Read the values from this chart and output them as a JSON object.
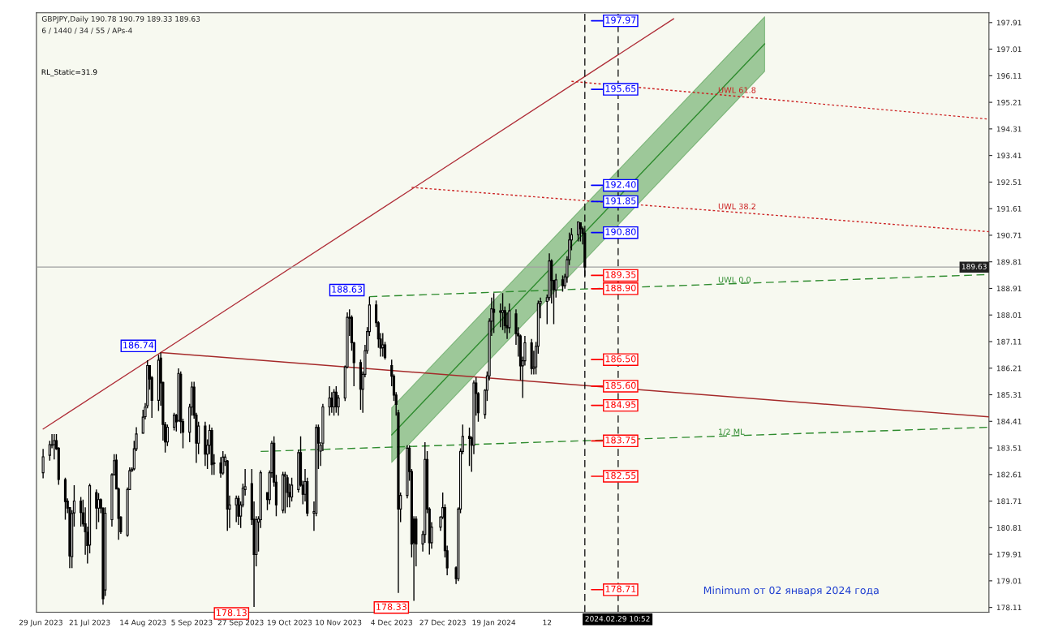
{
  "chart_data": {
    "type": "candlestick",
    "title": "GBPJPY,Daily 190.78 190.79 189.33 189.63",
    "subtitle": "6 / 1440 / 34 / 55 / APs-4",
    "x": [
      "2023-06-30",
      "2023-07-03",
      "2023-07-04",
      "2023-07-05",
      "2023-07-06",
      "2023-07-07",
      "2023-07-10",
      "2023-07-11",
      "2023-07-12",
      "2023-07-13",
      "2023-07-14",
      "2023-07-17",
      "2023-07-18",
      "2023-07-19",
      "2023-07-20",
      "2023-07-21",
      "2023-07-24",
      "2023-07-25",
      "2023-07-26",
      "2023-07-27",
      "2023-07-28",
      "2023-07-31",
      "2023-08-01",
      "2023-08-02",
      "2023-08-03",
      "2023-08-04",
      "2023-08-07",
      "2023-08-08",
      "2023-08-09",
      "2023-08-10",
      "2023-08-11",
      "2023-08-14",
      "2023-08-15",
      "2023-08-16",
      "2023-08-17",
      "2023-08-18",
      "2023-08-21",
      "2023-08-22",
      "2023-08-23",
      "2023-08-24",
      "2023-08-25",
      "2023-08-28",
      "2023-08-29",
      "2023-08-30",
      "2023-08-31",
      "2023-09-01",
      "2023-09-04",
      "2023-09-05",
      "2023-09-06",
      "2023-09-07",
      "2023-09-08",
      "2023-09-11",
      "2023-09-12",
      "2023-09-13",
      "2023-09-14",
      "2023-09-15",
      "2023-09-18",
      "2023-09-19",
      "2023-09-20",
      "2023-09-21",
      "2023-09-22",
      "2023-09-25",
      "2023-09-26",
      "2023-09-27",
      "2023-09-28",
      "2023-09-29",
      "2023-10-02",
      "2023-10-03",
      "2023-10-04",
      "2023-10-05",
      "2023-10-06",
      "2023-10-09",
      "2023-10-10",
      "2023-10-11",
      "2023-10-12",
      "2023-10-13",
      "2023-10-16",
      "2023-10-17",
      "2023-10-18",
      "2023-10-19",
      "2023-10-20",
      "2023-10-23",
      "2023-10-24",
      "2023-10-25",
      "2023-10-26",
      "2023-10-27",
      "2023-10-30",
      "2023-10-31",
      "2023-11-01",
      "2023-11-02",
      "2023-11-03",
      "2023-11-06",
      "2023-11-07",
      "2023-11-08",
      "2023-11-09",
      "2023-11-10",
      "2023-11-13",
      "2023-11-14",
      "2023-11-15",
      "2023-11-16",
      "2023-11-17",
      "2023-11-20",
      "2023-11-21",
      "2023-11-22",
      "2023-11-23",
      "2023-11-24",
      "2023-11-27",
      "2023-11-28",
      "2023-11-29",
      "2023-11-30",
      "2023-12-01",
      "2023-12-04",
      "2023-12-05",
      "2023-12-06",
      "2023-12-07",
      "2023-12-08",
      "2023-12-11",
      "2023-12-12",
      "2023-12-13",
      "2023-12-14",
      "2023-12-15",
      "2023-12-18",
      "2023-12-19",
      "2023-12-20",
      "2023-12-21",
      "2023-12-22",
      "2023-12-26",
      "2023-12-27",
      "2023-12-28",
      "2023-12-29",
      "2024-01-02",
      "2024-01-03",
      "2024-01-04",
      "2024-01-05",
      "2024-01-08",
      "2024-01-09",
      "2024-01-10",
      "2024-01-11",
      "2024-01-12",
      "2024-01-15",
      "2024-01-16",
      "2024-01-17",
      "2024-01-18",
      "2024-01-19",
      "2024-01-22",
      "2024-01-23",
      "2024-01-24",
      "2024-01-25",
      "2024-01-26",
      "2024-01-29",
      "2024-01-30",
      "2024-01-31",
      "2024-02-01",
      "2024-02-02",
      "2024-02-05",
      "2024-02-06",
      "2024-02-07",
      "2024-02-08",
      "2024-02-09",
      "2024-02-12",
      "2024-02-13",
      "2024-02-14",
      "2024-02-15",
      "2024-02-16",
      "2024-02-19",
      "2024-02-20",
      "2024-02-21",
      "2024-02-22",
      "2024-02-23",
      "2024-02-26",
      "2024-02-27",
      "2024-02-28",
      "2024-02-29"
    ],
    "ohlc": [
      [
        182.67,
        183.48,
        182.48,
        183.21
      ],
      [
        183.26,
        183.75,
        183.08,
        183.62
      ],
      [
        183.6,
        183.98,
        183.5,
        183.62
      ],
      [
        183.62,
        183.98,
        183.12,
        183.76
      ],
      [
        183.76,
        183.98,
        183.44,
        183.48
      ],
      [
        183.5,
        183.53,
        182.26,
        182.44
      ],
      [
        182.44,
        182.5,
        181.08,
        181.69
      ],
      [
        181.71,
        181.8,
        181.3,
        181.47
      ],
      [
        181.49,
        181.5,
        179.44,
        179.85
      ],
      [
        179.83,
        181.4,
        179.44,
        181.29
      ],
      [
        181.31,
        182.25,
        180.85,
        181.71
      ],
      [
        181.71,
        181.85,
        180.85,
        181.32
      ],
      [
        181.31,
        181.76,
        180.85,
        180.94
      ],
      [
        180.94,
        181.5,
        179.89,
        180.67
      ],
      [
        180.65,
        180.85,
        179.6,
        180.2
      ],
      [
        180.22,
        182.3,
        179.94,
        182.23
      ],
      [
        182.0,
        182.1,
        180.76,
        181.47
      ],
      [
        181.47,
        181.98,
        181.0,
        181.76
      ],
      [
        181.76,
        181.8,
        181.3,
        181.47
      ],
      [
        181.47,
        181.5,
        178.2,
        178.4
      ],
      [
        178.7,
        181.5,
        178.5,
        181.3
      ],
      [
        181.08,
        182.65,
        180.85,
        182.6
      ],
      [
        182.6,
        183.3,
        182.58,
        183.08
      ],
      [
        183.1,
        183.3,
        182.12,
        182.12
      ],
      [
        182.12,
        182.17,
        180.4,
        181.12
      ],
      [
        181.17,
        181.2,
        180.6,
        180.67
      ],
      [
        180.55,
        182.17,
        180.5,
        182.1
      ],
      [
        182.1,
        182.85,
        182.08,
        182.74
      ],
      [
        182.74,
        182.85,
        182.7,
        182.79
      ],
      [
        182.8,
        183.75,
        182.75,
        183.48
      ],
      [
        183.48,
        184.21,
        183.4,
        183.98
      ],
      [
        184.01,
        184.8,
        184.0,
        184.55
      ],
      [
        184.57,
        185.03,
        184.48,
        184.89
      ],
      [
        184.94,
        186.48,
        184.85,
        186.3
      ],
      [
        186.3,
        186.3,
        185.48,
        185.84
      ],
      [
        185.89,
        185.94,
        184.53,
        185.12
      ],
      [
        185.12,
        186.66,
        184.76,
        186.48
      ],
      [
        186.55,
        186.74,
        184.94,
        185.71
      ],
      [
        185.73,
        185.75,
        183.76,
        184.3
      ],
      [
        184.3,
        184.39,
        183.35,
        183.71
      ],
      [
        183.71,
        184.3,
        183.57,
        184.21
      ],
      [
        184.21,
        184.7,
        184.1,
        184.62
      ],
      [
        184.62,
        184.66,
        184.07,
        184.39
      ],
      [
        184.44,
        186.2,
        184.4,
        186.03
      ],
      [
        186.0,
        186.1,
        184.0,
        184.4
      ],
      [
        184.4,
        184.5,
        183.5,
        184.04
      ],
      [
        184.04,
        185.0,
        183.7,
        184.89
      ],
      [
        184.89,
        185.75,
        184.6,
        185.57
      ],
      [
        185.57,
        185.75,
        184.5,
        184.62
      ],
      [
        184.62,
        184.7,
        183.0,
        183.67
      ],
      [
        183.67,
        184.4,
        183.3,
        184.25
      ],
      [
        184.25,
        184.4,
        182.9,
        183.3
      ],
      [
        183.3,
        183.8,
        182.8,
        183.6
      ],
      [
        183.6,
        184.3,
        183.3,
        184.1
      ],
      [
        184.1,
        184.2,
        182.6,
        182.94
      ],
      [
        182.98,
        183.3,
        182.6,
        183.0
      ],
      [
        183.0,
        183.2,
        182.5,
        182.66
      ],
      [
        182.66,
        183.4,
        182.6,
        183.2
      ],
      [
        183.05,
        183.3,
        182.9,
        183.2
      ],
      [
        183.07,
        183.1,
        180.7,
        181.44
      ],
      [
        181.44,
        181.9,
        180.8,
        181.58
      ],
      [
        181.58,
        181.9,
        181.0,
        181.8
      ],
      [
        181.8,
        181.9,
        180.9,
        181.2
      ],
      [
        181.2,
        181.7,
        180.8,
        181.58
      ],
      [
        181.58,
        182.3,
        181.5,
        182.15
      ],
      [
        182.1,
        182.8,
        181.9,
        182.2
      ],
      [
        182.3,
        182.8,
        180.9,
        181.08
      ],
      [
        181.1,
        181.7,
        178.13,
        179.9
      ],
      [
        179.9,
        181.2,
        179.5,
        181.08
      ],
      [
        181.0,
        181.2,
        180.0,
        181.1
      ],
      [
        181.08,
        182.75,
        180.8,
        182.67
      ],
      [
        182.0,
        182.0,
        181.4,
        181.76
      ],
      [
        181.76,
        182.75,
        181.6,
        182.67
      ],
      [
        182.67,
        183.75,
        182.5,
        183.67
      ],
      [
        183.67,
        183.9,
        182.2,
        182.35
      ],
      [
        182.35,
        182.6,
        181.2,
        181.58
      ],
      [
        181.4,
        182.7,
        181.3,
        182.6
      ],
      [
        182.55,
        182.7,
        181.3,
        182.6
      ],
      [
        182.5,
        182.6,
        181.5,
        182.0
      ],
      [
        182.0,
        182.3,
        181.5,
        181.85
      ],
      [
        181.85,
        182.5,
        181.7,
        182.25
      ],
      [
        182.1,
        183.45,
        182.0,
        183.35
      ],
      [
        183.35,
        183.9,
        182.2,
        182.25
      ],
      [
        182.25,
        182.4,
        181.6,
        181.94
      ],
      [
        181.94,
        182.8,
        181.7,
        182.37
      ],
      [
        182.37,
        182.5,
        181.2,
        181.3
      ],
      [
        181.3,
        181.7,
        180.7,
        181.35
      ],
      [
        181.3,
        184.3,
        181.2,
        184.2
      ],
      [
        184.2,
        184.3,
        182.8,
        183.67
      ],
      [
        183.4,
        183.7,
        182.9,
        183.6
      ],
      [
        183.67,
        185.0,
        183.4,
        184.9
      ],
      [
        184.9,
        185.6,
        184.6,
        185.2
      ],
      [
        185.2,
        185.4,
        184.7,
        184.9
      ],
      [
        184.9,
        185.5,
        184.6,
        185.4
      ],
      [
        185.4,
        185.6,
        184.7,
        184.9
      ],
      [
        184.9,
        185.3,
        184.6,
        185.2
      ],
      [
        185.2,
        186.3,
        185.1,
        186.25
      ],
      [
        186.25,
        188.1,
        186.2,
        187.93
      ],
      [
        187.9,
        188.2,
        187.3,
        187.93
      ],
      [
        187.93,
        188.0,
        186.8,
        187.07
      ],
      [
        187.07,
        187.1,
        185.6,
        186.4
      ],
      [
        186.4,
        186.5,
        184.8,
        185.5
      ],
      [
        185.5,
        186.1,
        184.7,
        186.0
      ],
      [
        186.0,
        187.0,
        185.9,
        186.8
      ],
      [
        186.8,
        187.6,
        186.7,
        187.45
      ],
      [
        187.45,
        188.63,
        187.3,
        188.35
      ],
      [
        188.35,
        188.5,
        187.6,
        187.75
      ],
      [
        187.75,
        187.8,
        186.9,
        187.2
      ],
      [
        187.2,
        187.4,
        186.6,
        186.89
      ],
      [
        186.9,
        187.4,
        186.6,
        187.0
      ],
      [
        187.0,
        187.1,
        186.5,
        186.57
      ],
      [
        186.3,
        186.5,
        185.6,
        185.94
      ],
      [
        185.94,
        186.0,
        185.1,
        185.3
      ],
      [
        185.3,
        185.4,
        184.6,
        184.98
      ],
      [
        184.7,
        184.8,
        178.6,
        181.44
      ],
      [
        181.44,
        182.0,
        181.0,
        181.9
      ],
      [
        181.9,
        183.6,
        181.8,
        183.5
      ],
      [
        183.5,
        183.6,
        182.4,
        182.71
      ],
      [
        182.71,
        182.8,
        179.8,
        180.26
      ],
      [
        181.1,
        181.2,
        178.33,
        180.3
      ],
      [
        181.1,
        181.2,
        179.5,
        180.26
      ],
      [
        180.26,
        180.7,
        180.0,
        180.58
      ],
      [
        180.58,
        183.7,
        180.3,
        183.12
      ],
      [
        183.12,
        183.4,
        181.3,
        181.44
      ],
      [
        181.44,
        181.5,
        179.9,
        180.3
      ],
      [
        180.3,
        181.0,
        180.1,
        180.83
      ],
      [
        180.83,
        181.2,
        180.7,
        181.17
      ],
      [
        181.17,
        182.0,
        181.1,
        181.49
      ],
      [
        181.49,
        181.6,
        179.8,
        180.03
      ],
      [
        180.03,
        180.2,
        179.2,
        179.45
      ],
      [
        179.45,
        179.5,
        178.9,
        179.08
      ],
      [
        179.08,
        181.5,
        179.0,
        181.44
      ],
      [
        181.44,
        183.5,
        181.3,
        183.39
      ],
      [
        183.39,
        184.3,
        183.3,
        183.9
      ],
      [
        183.9,
        184.2,
        182.9,
        183.83
      ],
      [
        183.85,
        183.9,
        182.7,
        183.6
      ],
      [
        183.6,
        185.8,
        183.3,
        185.71
      ],
      [
        185.71,
        185.9,
        184.6,
        185.35
      ],
      [
        185.35,
        185.4,
        184.4,
        184.7
      ],
      [
        184.64,
        185.5,
        184.5,
        185.46
      ],
      [
        185.46,
        186.1,
        185.1,
        185.95
      ],
      [
        185.95,
        187.9,
        185.8,
        187.8
      ],
      [
        187.8,
        188.6,
        187.3,
        188.22
      ],
      [
        188.2,
        188.75,
        187.4,
        188.1
      ],
      [
        188.15,
        188.4,
        187.6,
        188.1
      ],
      [
        188.1,
        188.75,
        187.5,
        188.16
      ],
      [
        188.16,
        188.3,
        187.4,
        187.65
      ],
      [
        187.65,
        188.1,
        187.2,
        187.58
      ],
      [
        187.58,
        188.4,
        187.4,
        188.15
      ],
      [
        188.05,
        188.2,
        187.0,
        187.38
      ],
      [
        187.38,
        187.6,
        186.6,
        187.3
      ],
      [
        187.3,
        187.35,
        185.8,
        186.29
      ],
      [
        186.29,
        186.6,
        185.2,
        186.46
      ],
      [
        186.46,
        187.3,
        186.3,
        187.07
      ],
      [
        187.07,
        187.2,
        186.0,
        186.2
      ],
      [
        186.2,
        186.8,
        186.0,
        186.25
      ],
      [
        186.25,
        187.1,
        186.0,
        186.95
      ],
      [
        186.95,
        188.5,
        186.7,
        188.4
      ],
      [
        188.4,
        188.6,
        187.9,
        188.47
      ],
      [
        188.47,
        188.7,
        187.7,
        188.6
      ],
      [
        188.6,
        190.1,
        188.5,
        189.84
      ],
      [
        189.84,
        189.9,
        188.4,
        189.18
      ],
      [
        189.18,
        189.2,
        187.7,
        188.86
      ],
      [
        188.86,
        189.4,
        188.6,
        189.2
      ],
      [
        189.2,
        189.35,
        188.8,
        189.0
      ],
      [
        189.0,
        189.4,
        188.9,
        189.3
      ],
      [
        189.3,
        190.0,
        189.1,
        189.88
      ],
      [
        189.88,
        190.8,
        189.7,
        190.55
      ],
      [
        190.55,
        190.95,
        190.2,
        190.73
      ],
      [
        190.73,
        191.16,
        190.5,
        191.16
      ],
      [
        191.13,
        191.14,
        190.5,
        190.93
      ],
      [
        190.93,
        191.0,
        190.4,
        190.78
      ],
      [
        190.78,
        190.79,
        189.33,
        189.63
      ]
    ],
    "series": [
      {
        "type": "line",
        "color": "#b0303a",
        "line_style": "solid",
        "x": [
          "2023-06-30",
          "2024-04-09"
        ],
        "values": [
          184.15,
          198.04
        ]
      },
      {
        "type": "line",
        "color": "#a52a2a",
        "line_style": "solid",
        "x": [
          "2023-08-22",
          "2024-08-29"
        ],
        "values": [
          186.74,
          184.56
        ]
      },
      {
        "type": "line",
        "color": "#2e8b2e",
        "line_style": "solid",
        "x": [
          "2023-12-04",
          "2024-05-20"
        ],
        "values": [
          183.95,
          197.19
        ],
        "lower": [
          183.02,
          196.26
        ],
        "upper": [
          184.87,
          198.11
        ]
      },
      {
        "type": "line",
        "name": "UWL 0.0",
        "color": "#2e8b2e",
        "line_style": "dashed",
        "x": [
          "2023-11-24",
          "2024-08-29"
        ],
        "values": [
          188.63,
          189.38
        ]
      },
      {
        "type": "line",
        "name": "1/2 ML",
        "color": "#2e8b2e",
        "line_style": "dashed",
        "x": [
          "2023-10-06",
          "2024-08-29"
        ],
        "values": [
          183.39,
          184.21
        ]
      },
      {
        "type": "line",
        "name": "UWL 38.2",
        "color": "#cc2222",
        "line_style": "dotted",
        "x": [
          "2023-12-13",
          "2024-08-29"
        ],
        "values": [
          192.33,
          190.83
        ]
      },
      {
        "type": "line",
        "name": "UWL 61.8",
        "color": "#cc2222",
        "line_style": "dotted",
        "x": [
          "2024-02-23",
          "2024-08-29"
        ],
        "values": [
          195.92,
          194.64
        ]
      }
    ],
    "xlim": [
      "2023-06-27",
      "2024-08-29"
    ],
    "xticks": [
      {
        "value": "2023-06-29",
        "label": "29 Jun 2023"
      },
      {
        "value": "2023-07-21",
        "label": "21 Jul 2023"
      },
      {
        "value": "2023-08-14",
        "label": "14 Aug 2023"
      },
      {
        "value": "2023-09-05",
        "label": "5 Sep 2023"
      },
      {
        "value": "2023-09-27",
        "label": "27 Sep 2023"
      },
      {
        "value": "2023-10-19",
        "label": "19 Oct 2023"
      },
      {
        "value": "2023-11-10",
        "label": "10 Nov 2023"
      },
      {
        "value": "2023-12-04",
        "label": "4 Dec 2023"
      },
      {
        "value": "2023-12-27",
        "label": "27 Dec 2023"
      },
      {
        "value": "2024-01-19",
        "label": "19 Jan 2024"
      },
      {
        "value": "2024-02-12",
        "label": "12"
      }
    ],
    "ylim": [
      177.95,
      198.24
    ],
    "yticks": [
      178.11,
      179.01,
      179.91,
      180.81,
      181.71,
      182.61,
      183.51,
      184.41,
      185.31,
      186.21,
      187.11,
      188.01,
      188.91,
      189.81,
      190.71,
      191.61,
      192.51,
      193.41,
      194.31,
      195.21,
      196.11,
      197.01,
      197.91
    ],
    "ref_lines": [
      {
        "axis": "x",
        "value": "2024-02-29",
        "label": "2024.02.29 10:52",
        "color": "#000000",
        "line_style": "dashed"
      },
      {
        "axis": "x",
        "value": "2024-03-15",
        "label": null,
        "color": "#000000",
        "line_style": "dashed"
      },
      {
        "axis": "y",
        "value": 189.63,
        "label": "189.63",
        "color": "#a0a0a0",
        "line_style": "solid"
      },
      {
        "axis": "y",
        "value": 197.97,
        "label": "197.97",
        "color": "#0000ff"
      },
      {
        "axis": "y",
        "value": 195.65,
        "label": "195.65",
        "color": "#0000ff"
      },
      {
        "axis": "y",
        "value": 192.4,
        "label": "192.40",
        "color": "#0000ff"
      },
      {
        "axis": "y",
        "value": 191.85,
        "label": "191.85",
        "color": "#0000ff"
      },
      {
        "axis": "y",
        "value": 190.8,
        "label": "190.80",
        "color": "#0000ff"
      },
      {
        "axis": "y",
        "value": 189.35,
        "label": "189.35",
        "color": "#ff0000"
      },
      {
        "axis": "y",
        "value": 188.9,
        "label": "188.90",
        "color": "#ff0000"
      },
      {
        "axis": "y",
        "value": 186.5,
        "label": "186.50",
        "color": "#ff0000"
      },
      {
        "axis": "y",
        "value": 185.6,
        "label": "185.60",
        "color": "#ff0000"
      },
      {
        "axis": "y",
        "value": 184.95,
        "label": "184.95",
        "color": "#ff0000"
      },
      {
        "axis": "y",
        "value": 183.75,
        "label": "183.75",
        "color": "#ff0000"
      },
      {
        "axis": "y",
        "value": 182.55,
        "label": "182.55",
        "color": "#ff0000"
      },
      {
        "axis": "y",
        "value": 178.71,
        "label": "178.71",
        "color": "#ff0000"
      }
    ],
    "annotations": [
      "RL_Static=31.9",
      "Minimum от 02 января 2024 года",
      {
        "text": "186.74",
        "x": "2023-08-22",
        "y": 186.74
      },
      {
        "text": "178.13",
        "x": "2023-10-03",
        "y": 178.13
      },
      {
        "text": "188.63",
        "x": "2023-11-24",
        "y": 188.63
      },
      {
        "text": "178.33",
        "x": "2023-12-14",
        "y": 178.33
      }
    ]
  }
}
